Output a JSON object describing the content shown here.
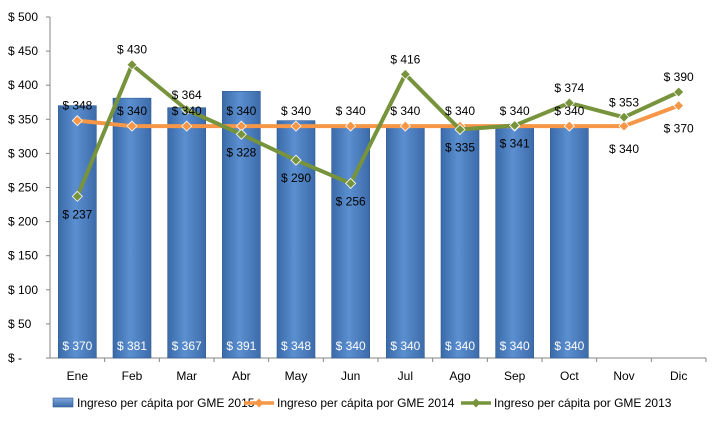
{
  "chart_data": {
    "type": "bar",
    "title": "",
    "xlabel": "",
    "ylabel": "",
    "ylim": [
      0,
      500
    ],
    "y_ticks": [
      0,
      50,
      100,
      150,
      200,
      250,
      300,
      350,
      400,
      450,
      500
    ],
    "y_tick_labels": [
      "$ -",
      "$ 50",
      "$ 100",
      "$ 150",
      "$ 200",
      "$ 250",
      "$ 300",
      "$ 350",
      "$ 400",
      "$ 450",
      "$ 500"
    ],
    "categories": [
      "Ene",
      "Feb",
      "Mar",
      "Abr",
      "May",
      "Jun",
      "Jul",
      "Ago",
      "Sep",
      "Oct",
      "Nov",
      "Dic"
    ],
    "grid": false,
    "legend_position": "bottom",
    "series": [
      {
        "name": "Ingreso per cápita por GME 2015",
        "kind": "bar",
        "color": "#4F81BD",
        "values": [
          370,
          381,
          367,
          391,
          348,
          340,
          340,
          340,
          340,
          340,
          null,
          null
        ],
        "labels": [
          "$ 370",
          "$ 381",
          "$ 367",
          "$ 391",
          "$ 348",
          "$ 340",
          "$ 340",
          "$ 340",
          "$ 340",
          "$ 340",
          null,
          null
        ]
      },
      {
        "name": "Ingreso per cápita por GME 2014",
        "kind": "line",
        "color": "#F79646",
        "values": [
          348,
          340,
          340,
          340,
          340,
          340,
          340,
          340,
          340,
          340,
          340,
          370
        ],
        "labels": [
          "$ 348",
          "$ 340",
          "$ 340",
          "$ 340",
          "$ 340",
          "$ 340",
          "$ 340",
          "$ 340",
          "$ 340",
          "$ 340",
          "$ 340",
          "$ 370"
        ]
      },
      {
        "name": "Ingreso per cápita por GME 2013",
        "kind": "line",
        "color": "#77933C",
        "values": [
          237,
          430,
          364,
          328,
          290,
          256,
          416,
          335,
          341,
          374,
          353,
          390
        ],
        "labels": [
          "$ 237",
          "$ 430",
          "$ 364",
          "$ 328",
          "$ 290",
          "$ 256",
          "$ 416",
          "$ 335",
          "$ 341",
          "$ 374",
          "$ 353",
          "$ 390"
        ]
      }
    ]
  }
}
